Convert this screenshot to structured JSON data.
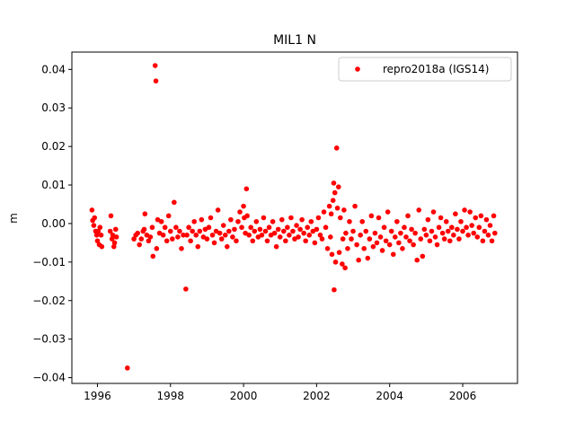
{
  "chart_data": {
    "type": "scatter",
    "title": "MIL1 N",
    "xlabel": "",
    "ylabel": "m",
    "xlim": [
      1995.3,
      2007.5
    ],
    "ylim": [
      -0.0415,
      0.0445
    ],
    "x_ticks": [
      1996,
      1998,
      2000,
      2002,
      2004,
      2006
    ],
    "x_tick_labels": [
      "1996",
      "1998",
      "2000",
      "2002",
      "2004",
      "2006"
    ],
    "y_ticks": [
      -0.04,
      -0.03,
      -0.02,
      -0.01,
      0.0,
      0.01,
      0.02,
      0.03,
      0.04
    ],
    "y_tick_labels": [
      "−0.04",
      "−0.03",
      "−0.02",
      "−0.01",
      "0.00",
      "0.01",
      "0.02",
      "0.03",
      "0.04"
    ],
    "grid": false,
    "legend_position": "top-right",
    "series": [
      {
        "name": "repro2018a (IGS14)",
        "color": "#ff0000",
        "marker": "circle",
        "points": [
          [
            1995.85,
            0.0035
          ],
          [
            1995.87,
            0.0008
          ],
          [
            1995.9,
            -0.0005
          ],
          [
            1995.92,
            0.0015
          ],
          [
            1995.95,
            -0.002
          ],
          [
            1995.98,
            -0.003
          ],
          [
            1996.0,
            -0.0045
          ],
          [
            1996.02,
            -0.002
          ],
          [
            1996.05,
            -0.0055
          ],
          [
            1996.07,
            -0.001
          ],
          [
            1996.1,
            -0.003
          ],
          [
            1996.12,
            -0.006
          ],
          [
            1996.35,
            -0.002
          ],
          [
            1996.37,
            0.002
          ],
          [
            1996.4,
            -0.004
          ],
          [
            1996.42,
            -0.003
          ],
          [
            1996.45,
            -0.006
          ],
          [
            1996.47,
            -0.005
          ],
          [
            1996.5,
            -0.0015
          ],
          [
            1996.52,
            -0.0035
          ],
          [
            1996.82,
            -0.0375
          ],
          [
            1997.0,
            -0.004
          ],
          [
            1997.05,
            -0.003
          ],
          [
            1997.1,
            -0.0025
          ],
          [
            1997.15,
            -0.0055
          ],
          [
            1997.2,
            -0.004
          ],
          [
            1997.25,
            -0.002
          ],
          [
            1997.28,
            -0.0015
          ],
          [
            1997.3,
            0.0025
          ],
          [
            1997.35,
            -0.003
          ],
          [
            1997.4,
            -0.0045
          ],
          [
            1997.45,
            -0.0035
          ],
          [
            1997.5,
            -0.001
          ],
          [
            1997.52,
            -0.0085
          ],
          [
            1997.58,
            0.041
          ],
          [
            1997.6,
            0.037
          ],
          [
            1997.62,
            -0.0065
          ],
          [
            1997.65,
            0.001
          ],
          [
            1997.7,
            -0.0025
          ],
          [
            1997.75,
            0.0005
          ],
          [
            1997.8,
            -0.003
          ],
          [
            1997.85,
            -0.001
          ],
          [
            1997.9,
            -0.0045
          ],
          [
            1997.95,
            0.002
          ],
          [
            1998.0,
            -0.002
          ],
          [
            1998.05,
            -0.004
          ],
          [
            1998.1,
            0.0055
          ],
          [
            1998.15,
            -0.001
          ],
          [
            1998.2,
            -0.0035
          ],
          [
            1998.25,
            -0.002
          ],
          [
            1998.3,
            -0.0065
          ],
          [
            1998.35,
            -0.003
          ],
          [
            1998.42,
            -0.017
          ],
          [
            1998.45,
            -0.003
          ],
          [
            1998.5,
            -0.001
          ],
          [
            1998.55,
            -0.0045
          ],
          [
            1998.6,
            -0.002
          ],
          [
            1998.65,
            0.0005
          ],
          [
            1998.7,
            -0.003
          ],
          [
            1998.75,
            -0.006
          ],
          [
            1998.8,
            -0.002
          ],
          [
            1998.85,
            0.001
          ],
          [
            1998.9,
            -0.0035
          ],
          [
            1998.95,
            -0.0015
          ],
          [
            1999.0,
            -0.004
          ],
          [
            1999.05,
            -0.001
          ],
          [
            1999.1,
            0.0015
          ],
          [
            1999.15,
            -0.003
          ],
          [
            1999.2,
            -0.005
          ],
          [
            1999.25,
            -0.002
          ],
          [
            1999.3,
            0.0035
          ],
          [
            1999.35,
            -0.0025
          ],
          [
            1999.4,
            -0.004
          ],
          [
            1999.45,
            -0.0005
          ],
          [
            1999.5,
            -0.003
          ],
          [
            1999.55,
            -0.006
          ],
          [
            1999.6,
            -0.002
          ],
          [
            1999.65,
            0.001
          ],
          [
            1999.7,
            -0.0035
          ],
          [
            1999.75,
            -0.0015
          ],
          [
            1999.8,
            -0.0045
          ],
          [
            1999.85,
            0.0005
          ],
          [
            1999.9,
            0.003
          ],
          [
            1999.95,
            -0.001
          ],
          [
            2000.0,
            0.0045
          ],
          [
            2000.02,
            0.0015
          ],
          [
            2000.05,
            -0.0025
          ],
          [
            2000.08,
            0.009
          ],
          [
            2000.1,
            0.002
          ],
          [
            2000.15,
            -0.003
          ],
          [
            2000.2,
            -0.001
          ],
          [
            2000.25,
            -0.0045
          ],
          [
            2000.3,
            -0.002
          ],
          [
            2000.35,
            0.0005
          ],
          [
            2000.4,
            -0.0035
          ],
          [
            2000.45,
            -0.0015
          ],
          [
            2000.5,
            -0.003
          ],
          [
            2000.55,
            0.0015
          ],
          [
            2000.6,
            -0.002
          ],
          [
            2000.65,
            -0.0045
          ],
          [
            2000.7,
            -0.001
          ],
          [
            2000.75,
            -0.003
          ],
          [
            2000.8,
            0.0005
          ],
          [
            2000.85,
            -0.0025
          ],
          [
            2000.9,
            -0.006
          ],
          [
            2000.95,
            -0.0015
          ],
          [
            2001.0,
            -0.0035
          ],
          [
            2001.05,
            0.001
          ],
          [
            2001.1,
            -0.002
          ],
          [
            2001.15,
            -0.0045
          ],
          [
            2001.2,
            -0.001
          ],
          [
            2001.25,
            -0.003
          ],
          [
            2001.3,
            0.0015
          ],
          [
            2001.35,
            -0.002
          ],
          [
            2001.4,
            -0.004
          ],
          [
            2001.45,
            -0.0005
          ],
          [
            2001.5,
            -0.0035
          ],
          [
            2001.55,
            -0.0015
          ],
          [
            2001.6,
            0.001
          ],
          [
            2001.65,
            -0.0025
          ],
          [
            2001.7,
            -0.0045
          ],
          [
            2001.75,
            -0.001
          ],
          [
            2001.8,
            -0.003
          ],
          [
            2001.85,
            0.0005
          ],
          [
            2001.9,
            -0.002
          ],
          [
            2001.95,
            -0.005
          ],
          [
            2002.0,
            -0.0015
          ],
          [
            2002.05,
            0.0015
          ],
          [
            2002.1,
            -0.003
          ],
          [
            2002.15,
            -0.004
          ],
          [
            2002.2,
            0.003
          ],
          [
            2002.25,
            -0.001
          ],
          [
            2002.3,
            -0.0065
          ],
          [
            2002.35,
            0.0045
          ],
          [
            2002.38,
            -0.0035
          ],
          [
            2002.4,
            0.0025
          ],
          [
            2002.42,
            -0.008
          ],
          [
            2002.45,
            0.006
          ],
          [
            2002.47,
            0.0105
          ],
          [
            2002.48,
            -0.0172
          ],
          [
            2002.5,
            0.008
          ],
          [
            2002.52,
            -0.01
          ],
          [
            2002.55,
            0.0196
          ],
          [
            2002.57,
            0.004
          ],
          [
            2002.6,
            0.0095
          ],
          [
            2002.62,
            -0.0075
          ],
          [
            2002.65,
            0.0015
          ],
          [
            2002.7,
            -0.0105
          ],
          [
            2002.72,
            -0.004
          ],
          [
            2002.75,
            0.0035
          ],
          [
            2002.78,
            -0.0115
          ],
          [
            2002.8,
            -0.0025
          ],
          [
            2002.85,
            -0.0065
          ],
          [
            2002.9,
            0.0005
          ],
          [
            2002.95,
            -0.004
          ],
          [
            2003.0,
            -0.002
          ],
          [
            2003.05,
            0.0045
          ],
          [
            2003.1,
            -0.0055
          ],
          [
            2003.15,
            -0.0095
          ],
          [
            2003.2,
            -0.003
          ],
          [
            2003.25,
            0.0005
          ],
          [
            2003.3,
            -0.0065
          ],
          [
            2003.35,
            -0.002
          ],
          [
            2003.4,
            -0.009
          ],
          [
            2003.45,
            -0.004
          ],
          [
            2003.5,
            0.002
          ],
          [
            2003.55,
            -0.006
          ],
          [
            2003.6,
            -0.0025
          ],
          [
            2003.65,
            -0.005
          ],
          [
            2003.7,
            0.0015
          ],
          [
            2003.75,
            -0.0035
          ],
          [
            2003.8,
            -0.007
          ],
          [
            2003.85,
            -0.001
          ],
          [
            2003.9,
            -0.0045
          ],
          [
            2003.95,
            0.003
          ],
          [
            2004.0,
            -0.0055
          ],
          [
            2004.05,
            -0.002
          ],
          [
            2004.1,
            -0.008
          ],
          [
            2004.15,
            -0.0035
          ],
          [
            2004.2,
            0.0005
          ],
          [
            2004.25,
            -0.005
          ],
          [
            2004.3,
            -0.0025
          ],
          [
            2004.35,
            -0.0065
          ],
          [
            2004.4,
            -0.001
          ],
          [
            2004.45,
            -0.0035
          ],
          [
            2004.5,
            0.002
          ],
          [
            2004.55,
            -0.0045
          ],
          [
            2004.6,
            -0.0015
          ],
          [
            2004.65,
            -0.0055
          ],
          [
            2004.7,
            -0.0025
          ],
          [
            2004.75,
            -0.0095
          ],
          [
            2004.8,
            0.0035
          ],
          [
            2004.85,
            -0.004
          ],
          [
            2004.9,
            -0.0085
          ],
          [
            2004.95,
            -0.0015
          ],
          [
            2005.0,
            -0.003
          ],
          [
            2005.05,
            0.001
          ],
          [
            2005.1,
            -0.0045
          ],
          [
            2005.15,
            -0.002
          ],
          [
            2005.2,
            0.003
          ],
          [
            2005.25,
            -0.0035
          ],
          [
            2005.3,
            -0.0055
          ],
          [
            2005.35,
            -0.001
          ],
          [
            2005.4,
            0.0015
          ],
          [
            2005.45,
            -0.0025
          ],
          [
            2005.5,
            -0.004
          ],
          [
            2005.55,
            0.0005
          ],
          [
            2005.6,
            -0.002
          ],
          [
            2005.65,
            -0.0045
          ],
          [
            2005.7,
            -0.001
          ],
          [
            2005.75,
            -0.003
          ],
          [
            2005.8,
            0.0025
          ],
          [
            2005.85,
            -0.0015
          ],
          [
            2005.9,
            -0.004
          ],
          [
            2005.95,
            0.0005
          ],
          [
            2006.0,
            -0.002
          ],
          [
            2006.05,
            0.0035
          ],
          [
            2006.1,
            -0.001
          ],
          [
            2006.15,
            -0.003
          ],
          [
            2006.2,
            0.003
          ],
          [
            2006.25,
            -0.0005
          ],
          [
            2006.3,
            -0.0025
          ],
          [
            2006.35,
            0.0015
          ],
          [
            2006.4,
            -0.0035
          ],
          [
            2006.45,
            -0.001
          ],
          [
            2006.5,
            0.002
          ],
          [
            2006.55,
            -0.0045
          ],
          [
            2006.6,
            -0.002
          ],
          [
            2006.65,
            0.001
          ],
          [
            2006.7,
            -0.003
          ],
          [
            2006.75,
            -0.0005
          ],
          [
            2006.8,
            -0.0045
          ],
          [
            2006.85,
            0.002
          ],
          [
            2006.88,
            -0.0025
          ]
        ]
      }
    ]
  }
}
